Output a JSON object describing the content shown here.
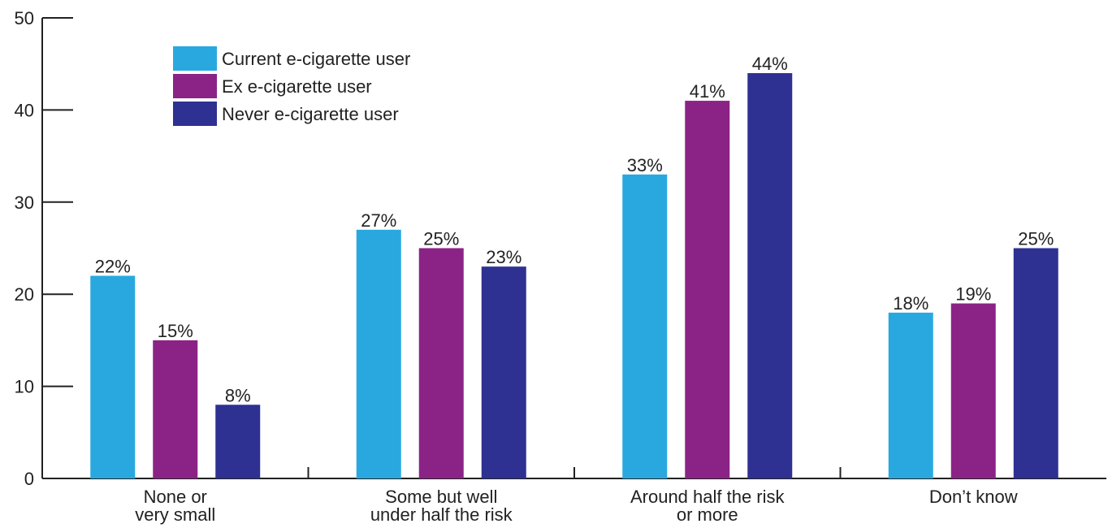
{
  "chart_data": {
    "type": "bar",
    "title": "",
    "xlabel": "",
    "ylabel": "",
    "ylim": [
      0,
      50
    ],
    "yticks": [
      0,
      10,
      20,
      30,
      40,
      50
    ],
    "categories": [
      [
        "None or",
        "very small"
      ],
      [
        "Some but well",
        "under half the risk"
      ],
      [
        "Around half the risk",
        "or more"
      ],
      [
        "Don’t know"
      ]
    ],
    "series": [
      {
        "name": "Current e-cigarette user",
        "color": "#29a8e0",
        "values": [
          22,
          27,
          33,
          18
        ],
        "labels": [
          "22%",
          "27%",
          "33%",
          "18%"
        ]
      },
      {
        "name": "Ex e-cigarette user",
        "color": "#8b2386",
        "values": [
          15,
          25,
          41,
          19
        ],
        "labels": [
          "15%",
          "25%",
          "41%",
          "19%"
        ]
      },
      {
        "name": "Never e-cigarette user",
        "color": "#2e3092",
        "values": [
          8,
          23,
          44,
          25
        ],
        "labels": [
          "8%",
          "23%",
          "44%",
          "25%"
        ]
      }
    ],
    "legend": "top-left",
    "grid": false
  }
}
